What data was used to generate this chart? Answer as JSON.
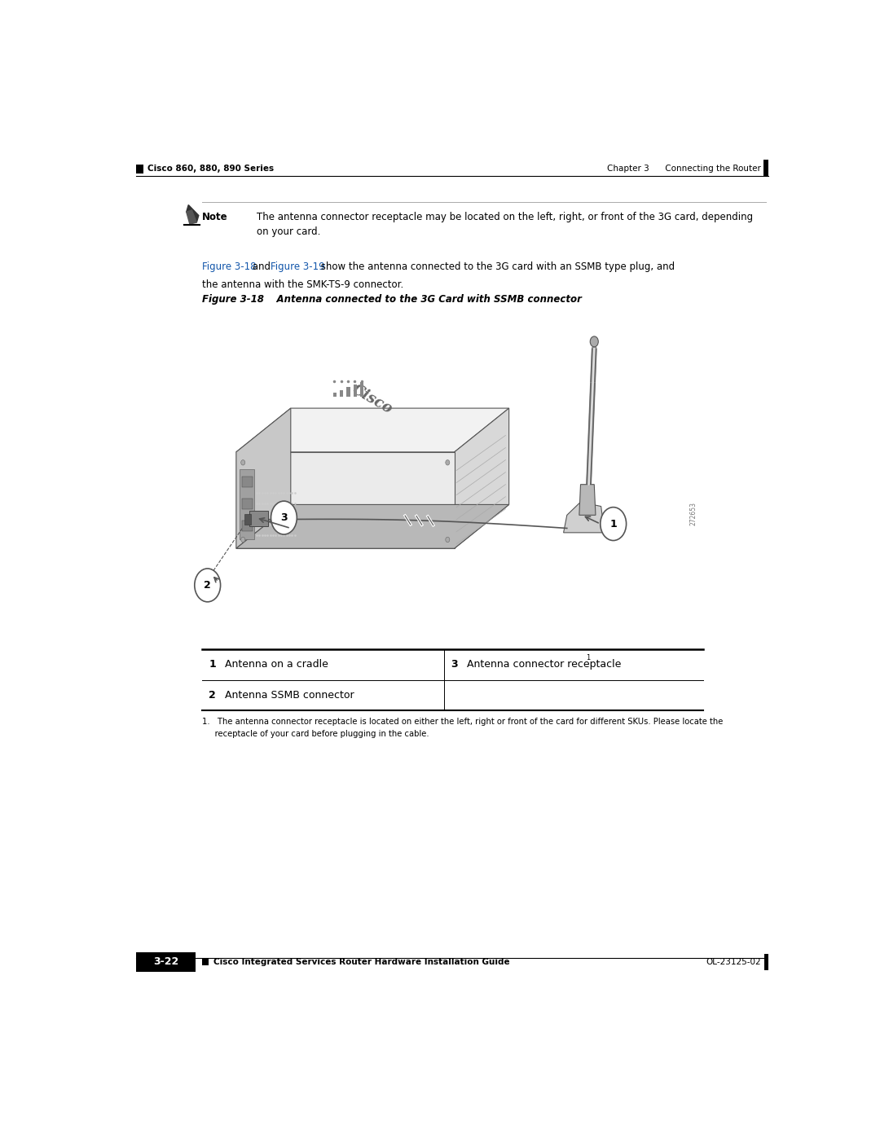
{
  "bg_color": "#ffffff",
  "page_width": 10.8,
  "page_height": 13.97,
  "header_chapter_text": "Chapter 3      Connecting the Router",
  "header_series_text": "Cisco 860, 880, 890 Series",
  "footer_guide_text": "Cisco Integrated Services Router Hardware Installation Guide",
  "footer_page_text": "3-22",
  "footer_code_text": "OL-23125-02",
  "note_label": "Note",
  "note_text": "The antenna connector receptacle may be located on the left, right, or front of the 3G card, depending\non your card.",
  "figure_label": "Figure 3-18",
  "figure_title": "Antenna connected to the 3G Card with SSMB connector",
  "footnote_text": "1.   The antenna connector receptacle is located on either the left, right or front of the card for different SKUs. Please locate the\n     receptacle of your card before plugging in the cable.",
  "colors": {
    "black": "#000000",
    "dark_gray": "#333333",
    "light_gray": "#cccccc",
    "mid_gray": "#888888",
    "blue_link": "#1155aa",
    "white": "#ffffff"
  }
}
